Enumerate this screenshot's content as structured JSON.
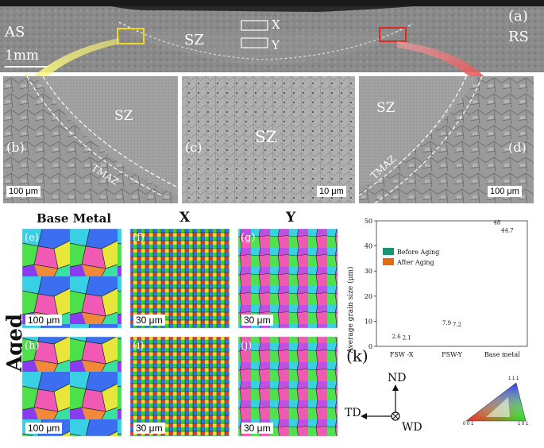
{
  "top_panel": {
    "letter": "(a)",
    "as_label": "AS",
    "rs_label": "RS",
    "scale": "1mm",
    "sz_label": "SZ",
    "x_label": "X",
    "y_label": "Y"
  },
  "panel_b": {
    "letter": "(b)",
    "sz": "SZ",
    "tmaz": "TMAZ",
    "scale": "100 μm"
  },
  "panel_c": {
    "letter": "(c)",
    "sz": "SZ",
    "scale": "10 μm"
  },
  "panel_d": {
    "letter": "(d)",
    "sz": "SZ",
    "tmaz": "TMAZ",
    "scale": "100 μm"
  },
  "ebsd": {
    "col_base": "Base Metal",
    "col_x": "X",
    "col_y": "Y",
    "row_aged": "Aged",
    "panels": [
      {
        "letter": "(e)",
        "scale": "100 μm"
      },
      {
        "letter": "(f)",
        "scale": "30 μm"
      },
      {
        "letter": "(g)",
        "scale": "30 μm"
      },
      {
        "letter": "(h)",
        "scale": "100 μm"
      },
      {
        "letter": "(i)",
        "scale": "30 μm"
      },
      {
        "letter": "(j)",
        "scale": "30 μm"
      }
    ]
  },
  "axes_legend": {
    "nd": "ND",
    "td": "TD",
    "wd": "WD"
  },
  "ipf_legend": {
    "top": "1 1 1",
    "left": "0 0 1",
    "right": "1 0 1"
  },
  "chart_data": {
    "type": "bar",
    "panel_letter": "(k)",
    "categories": [
      "FSW -X",
      "FSW-Y",
      "Base metal"
    ],
    "series": [
      {
        "name": "Before Aging",
        "values": [
          2.6,
          7.9,
          48
        ],
        "labels": [
          "2.6",
          "7.9",
          "48"
        ],
        "color": "#1a9470"
      },
      {
        "name": "After Aging",
        "values": [
          2.1,
          7.2,
          44.7
        ],
        "labels": [
          "2.1",
          "7.2",
          "44.7"
        ],
        "color": "#e46a10"
      }
    ],
    "ylabel": "Average grain size (μm)",
    "ylim": [
      0,
      50
    ],
    "yticks": [
      0,
      10,
      20,
      30,
      40,
      50
    ],
    "gridlines": [
      10,
      30
    ],
    "legend_position": "top-left"
  }
}
